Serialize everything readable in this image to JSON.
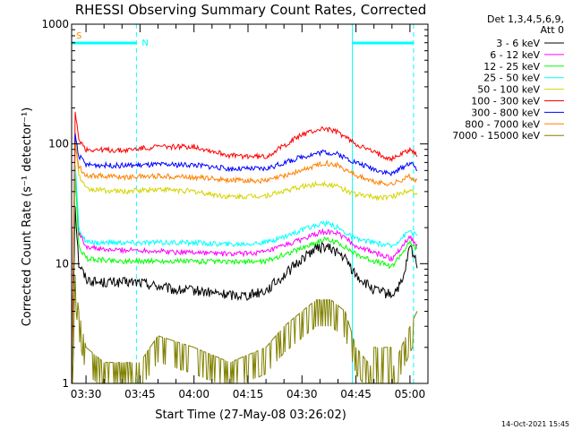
{
  "chart_data": {
    "type": "line",
    "title": "RHESSI Observing Summary Count Rates, Corrected",
    "xlabel": "Start Time (27-May-08 03:26:02)",
    "ylabel": "Corrected Count Rate (s⁻¹ detector⁻¹)",
    "y_scale": "log",
    "ylim": [
      1,
      1000
    ],
    "y_ticks": [
      1,
      10,
      100,
      1000
    ],
    "y_tick_labels": [
      "1",
      "10",
      "100",
      "1000"
    ],
    "xlim": [
      "03:26",
      "05:05"
    ],
    "x_ticks": [
      "03:30",
      "03:45",
      "04:00",
      "04:15",
      "04:30",
      "04:45",
      "05:00"
    ],
    "grid": false,
    "legend_header": [
      "Det 1,3,4,5,6,9,",
      "Att 0"
    ],
    "legend_position": "right",
    "markers": {
      "south_atlantic_anomaly": {
        "label": "S",
        "color": "#ff8c00",
        "time": "03:26"
      },
      "night": {
        "label": "N",
        "color": "#00ffff",
        "intervals": [
          [
            "03:26",
            "03:44"
          ],
          [
            "04:44",
            "05:01"
          ]
        ]
      },
      "dashed_lines": [
        "03:26",
        "03:44",
        "05:01"
      ],
      "solid_lines": [
        "04:44"
      ]
    },
    "series": [
      {
        "name": "3 - 6 keV",
        "color": "#000000",
        "times": [
          "03:26",
          "03:27",
          "03:28",
          "03:30",
          "03:33",
          "03:38",
          "03:45",
          "03:50",
          "03:55",
          "04:00",
          "04:05",
          "04:10",
          "04:15",
          "04:20",
          "04:25",
          "04:30",
          "04:33",
          "04:36",
          "04:39",
          "04:42",
          "04:45",
          "04:50",
          "04:55",
          "04:58",
          "05:00",
          "05:02"
        ],
        "values": [
          1.0,
          30,
          10,
          7.5,
          7,
          7,
          7,
          6.5,
          6,
          6,
          5.7,
          5.5,
          5.5,
          6,
          8,
          11,
          13,
          14,
          13,
          11,
          8,
          6,
          5.5,
          7,
          14,
          10
        ]
      },
      {
        "name": "6 - 12 keV",
        "color": "#ff00ff",
        "times": [
          "03:26",
          "03:27",
          "03:28",
          "03:30",
          "03:35",
          "03:45",
          "03:55",
          "04:00",
          "04:10",
          "04:20",
          "04:30",
          "04:36",
          "04:40",
          "04:45",
          "04:55",
          "05:00",
          "05:02"
        ],
        "values": [
          1.0,
          60,
          18,
          14,
          13,
          13,
          12.5,
          12.5,
          12,
          12.5,
          16,
          18.5,
          18,
          14,
          11,
          17,
          14
        ]
      },
      {
        "name": "12 - 25 keV",
        "color": "#00ff00",
        "times": [
          "03:26",
          "03:27",
          "03:28",
          "03:30",
          "03:40",
          "03:50",
          "04:00",
          "04:10",
          "04:20",
          "04:30",
          "04:36",
          "04:40",
          "04:45",
          "04:50",
          "04:55",
          "05:00",
          "05:02"
        ],
        "values": [
          1.0,
          55,
          14,
          11,
          10.5,
          10.5,
          10.5,
          10.3,
          10.5,
          13.5,
          16,
          15,
          12,
          10.5,
          9.5,
          15,
          13
        ]
      },
      {
        "name": "25 - 50 keV",
        "color": "#00ffff",
        "times": [
          "03:26",
          "03:27",
          "03:28",
          "03:30",
          "03:40",
          "03:50",
          "04:00",
          "04:10",
          "04:20",
          "04:30",
          "04:36",
          "04:40",
          "04:45",
          "04:50",
          "04:55",
          "05:00",
          "05:02"
        ],
        "values": [
          1.0,
          70,
          20,
          15,
          15,
          15,
          15,
          14.5,
          15,
          19,
          22,
          20,
          16,
          15,
          14,
          19,
          17
        ]
      },
      {
        "name": "50 - 100 keV",
        "color": "#d4d400",
        "times": [
          "03:26",
          "03:27",
          "03:28",
          "03:30",
          "03:40",
          "03:50",
          "04:00",
          "04:10",
          "04:20",
          "04:30",
          "04:36",
          "04:40",
          "04:45",
          "04:50",
          "04:55",
          "05:00",
          "05:02"
        ],
        "values": [
          1.0,
          120,
          55,
          42,
          40,
          42,
          40,
          36,
          37,
          44,
          47,
          44,
          38,
          36,
          36,
          42,
          38
        ]
      },
      {
        "name": "100 - 300 keV",
        "color": "#ff0000",
        "times": [
          "03:26",
          "03:27",
          "03:28",
          "03:30",
          "03:40",
          "03:50",
          "04:00",
          "04:10",
          "04:20",
          "04:30",
          "04:36",
          "04:40",
          "04:45",
          "04:50",
          "04:55",
          "05:00",
          "05:02"
        ],
        "values": [
          1.0,
          180,
          110,
          90,
          88,
          95,
          95,
          80,
          78,
          120,
          135,
          125,
          100,
          85,
          75,
          90,
          80
        ]
      },
      {
        "name": "300 - 800 keV",
        "color": "#0000ff",
        "times": [
          "03:26",
          "03:27",
          "03:28",
          "03:30",
          "03:40",
          "03:50",
          "04:00",
          "04:10",
          "04:20",
          "04:30",
          "04:36",
          "04:40",
          "04:45",
          "04:50",
          "04:55",
          "05:00",
          "05:02"
        ],
        "values": [
          1.0,
          120,
          80,
          67,
          66,
          67,
          67,
          62,
          62,
          78,
          86,
          82,
          70,
          62,
          56,
          70,
          62
        ]
      },
      {
        "name": "800 - 7000 keV",
        "color": "#ff8000",
        "times": [
          "03:26",
          "03:27",
          "03:28",
          "03:30",
          "03:40",
          "03:50",
          "04:00",
          "04:10",
          "04:20",
          "04:30",
          "04:36",
          "04:40",
          "04:45",
          "04:50",
          "04:55",
          "05:00",
          "05:02"
        ],
        "values": [
          1.0,
          100,
          65,
          55,
          53,
          54,
          53,
          50,
          49,
          60,
          70,
          66,
          55,
          48,
          46,
          54,
          48
        ]
      },
      {
        "name": "7000 - 15000 keV",
        "color": "#808000",
        "times": [
          "03:26",
          "03:27",
          "03:28",
          "03:30",
          "03:35",
          "03:45",
          "03:50",
          "04:00",
          "04:10",
          "04:20",
          "04:25",
          "04:30",
          "04:34",
          "04:38",
          "04:42",
          "04:45",
          "04:50",
          "04:55",
          "05:00",
          "05:02"
        ],
        "values": [
          1.0,
          8,
          4,
          2,
          1.5,
          1.5,
          2.5,
          2,
          1.5,
          2,
          3,
          4,
          5,
          5,
          4,
          2,
          1.3,
          1.3,
          3,
          4
        ]
      }
    ]
  },
  "footer": {
    "timestamp": "14-Oct-2021 15:45"
  }
}
